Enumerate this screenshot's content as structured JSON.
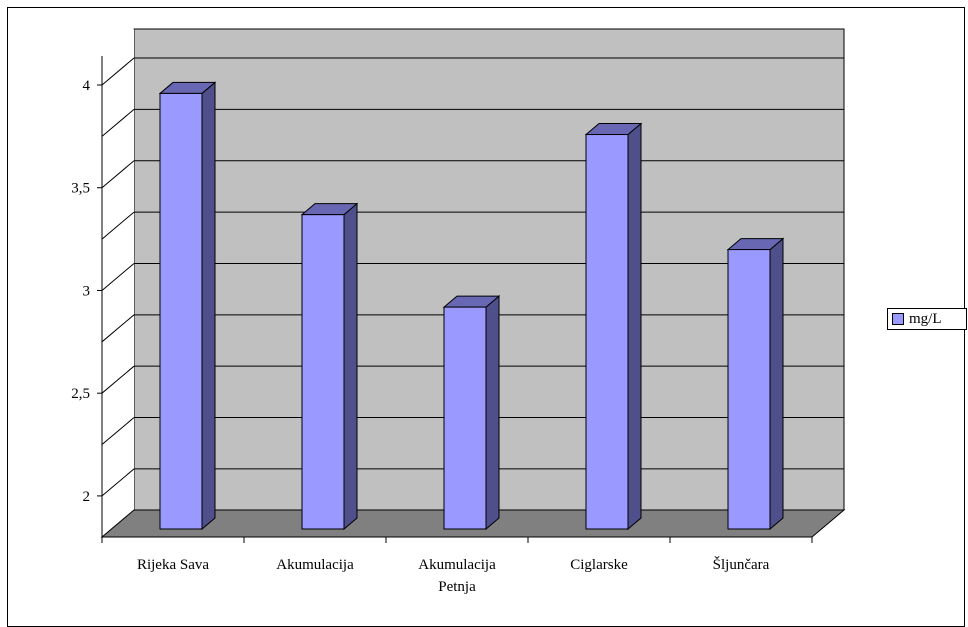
{
  "chart_data": {
    "type": "bar",
    "categories": [
      "Rijeka Sava",
      "Akumulacija",
      "Akumulacija Petnja",
      "Ciglarske",
      "Šljunčara"
    ],
    "category_lines": [
      [
        "Rijeka Sava"
      ],
      [
        "Akumulacija"
      ],
      [
        "Akumulacija",
        "Petnja"
      ],
      [
        "Ciglarske"
      ],
      [
        "Šljunčara"
      ]
    ],
    "series": [
      {
        "name": "mg/L",
        "values": [
          3.92,
          3.33,
          2.88,
          3.72,
          3.16
        ]
      }
    ],
    "ylim": [
      1.8,
      4
    ],
    "yticks": [
      2,
      2.5,
      3,
      3.5,
      4
    ],
    "ytick_labels": [
      "2",
      "2,5",
      "3",
      "3,5",
      "4"
    ],
    "grid": true,
    "legend_position": "right",
    "colors": {
      "bar_front": "#9999ff",
      "bar_side": "#4f4f8c",
      "bar_top": "#6767b3",
      "wall": "#c0c0c0",
      "floor": "#808080"
    }
  }
}
